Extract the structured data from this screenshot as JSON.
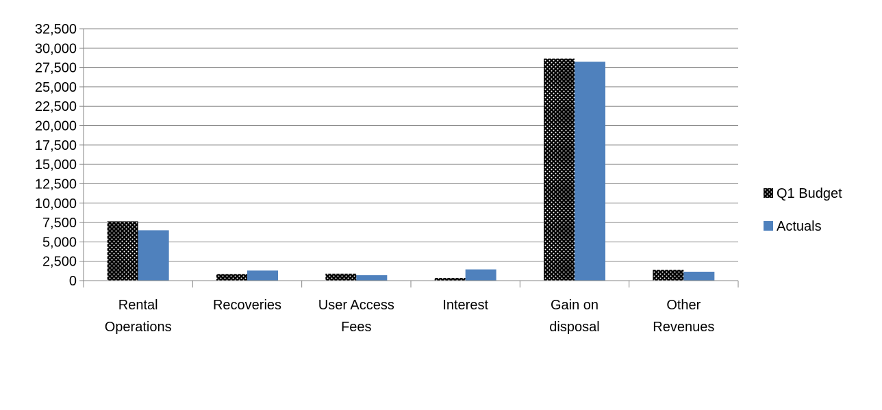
{
  "chart_data": {
    "type": "bar",
    "categories": [
      [
        "Rental",
        "Operations"
      ],
      [
        "Recoveries"
      ],
      [
        "User Access",
        "Fees"
      ],
      [
        "Interest"
      ],
      [
        "Gain on",
        "disposal"
      ],
      [
        "Other",
        "Revenues"
      ]
    ],
    "series": [
      {
        "name": "Q1 Budget",
        "pattern": "dotted",
        "color": "#000000",
        "values": [
          7650,
          850,
          900,
          350,
          28650,
          1400
        ]
      },
      {
        "name": "Actuals",
        "pattern": "solid",
        "color": "#4F81BD",
        "values": [
          6500,
          1300,
          700,
          1450,
          28250,
          1150
        ]
      }
    ],
    "yticks": [
      "0",
      "2,500",
      "5,000",
      "7,500",
      "10,000",
      "12,500",
      "15,000",
      "17,500",
      "20,000",
      "22,500",
      "25,000",
      "27,500",
      "30,000",
      "32,500"
    ],
    "ylim": [
      0,
      32500
    ],
    "ystep": 2500,
    "grid": true,
    "legend_position": "right"
  }
}
